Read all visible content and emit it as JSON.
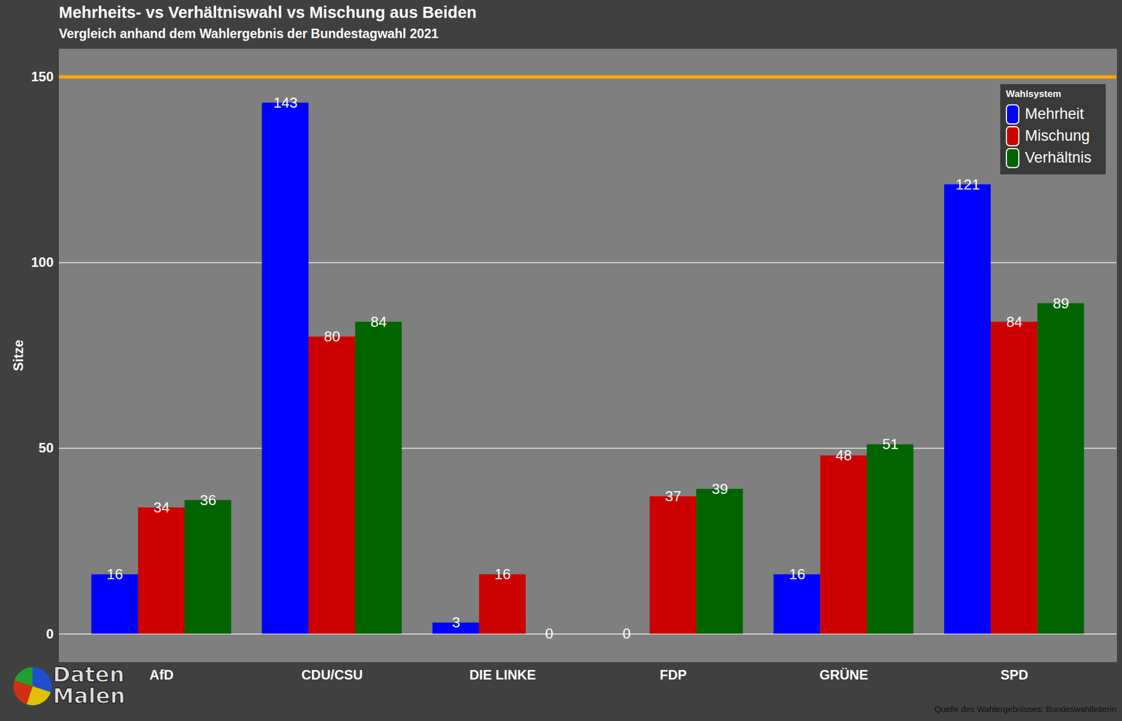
{
  "chart_data": {
    "type": "bar",
    "title": "Mehrheits- vs Verhältniswahl vs Mischung aus Beiden",
    "subtitle": "Vergleich anhand dem Wahlergebnis der Bundestagwahl 2021",
    "y_label": "Sitze",
    "categories": [
      "AfD",
      "CDU/CSU",
      "DIE LINKE",
      "FDP",
      "GRÜNE",
      "SPD"
    ],
    "series": [
      {
        "name": "Mehrheit",
        "color": "#0000ff",
        "values": [
          16,
          143,
          3,
          0,
          16,
          121
        ]
      },
      {
        "name": "Mischung",
        "color": "#cc0000",
        "values": [
          34,
          80,
          16,
          37,
          48,
          84
        ]
      },
      {
        "name": "Verhältnis",
        "color": "#006400",
        "values": [
          36,
          84,
          0,
          39,
          51,
          89
        ]
      }
    ],
    "hline": 150,
    "ylim": [
      -7.5,
      157.5
    ],
    "yticks": [
      0,
      50,
      100,
      150
    ],
    "grid": true,
    "data_labels": true,
    "legend": "top-right",
    "legend_title": "Wahlsystem",
    "source": "Quelle des Wahlergebnisses: Bundeswahlleiterin",
    "logo": "Daten Malen"
  }
}
